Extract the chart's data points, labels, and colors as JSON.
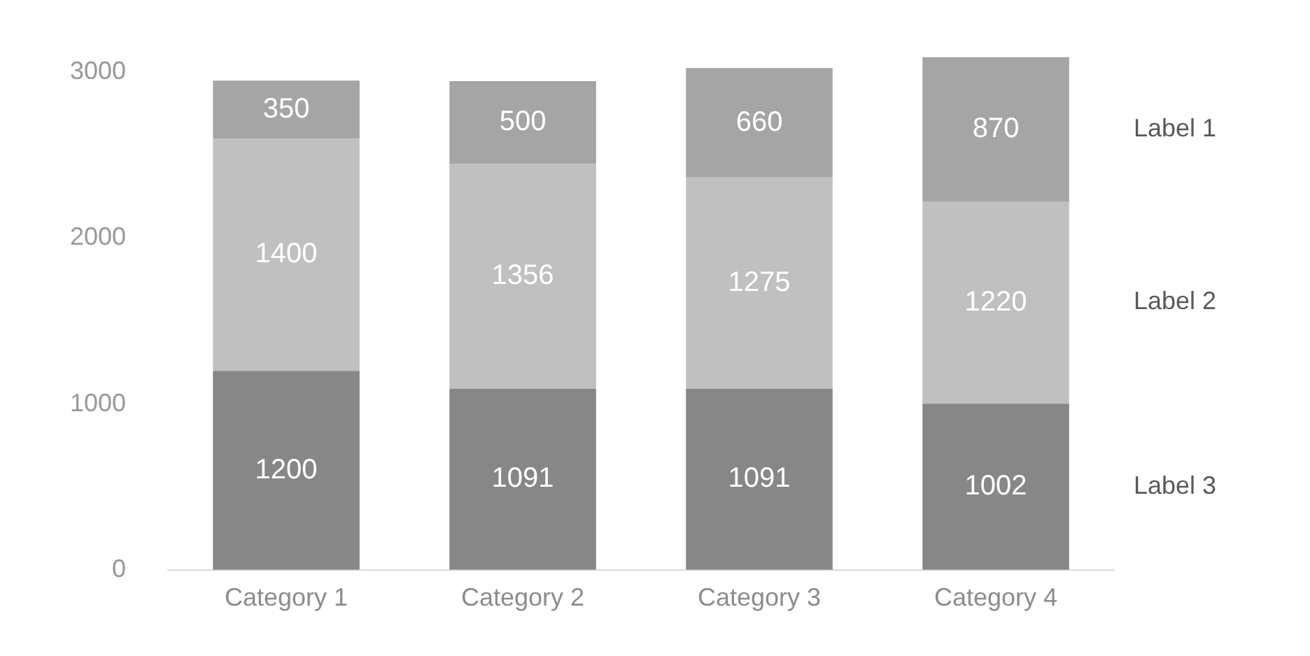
{
  "chart_data": {
    "type": "bar",
    "stacked": true,
    "categories": [
      "Category 1",
      "Category 2",
      "Category 3",
      "Category 4"
    ],
    "series": [
      {
        "name": "Label 3",
        "color": "#878787",
        "values": [
          1200,
          1091,
          1091,
          1002
        ]
      },
      {
        "name": "Label 2",
        "color": "#c0c0c0",
        "values": [
          1400,
          1356,
          1275,
          1220
        ]
      },
      {
        "name": "Label 1",
        "color": "#a5a5a5",
        "values": [
          350,
          500,
          660,
          870
        ]
      }
    ],
    "ylim": [
      0,
      3092
    ],
    "yticks": [
      0,
      1000,
      2000,
      3000
    ],
    "grid": false,
    "legend": false,
    "data_labels": true
  }
}
